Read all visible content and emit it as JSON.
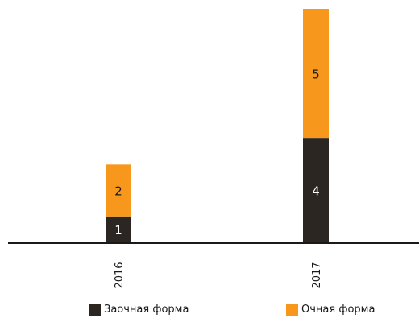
{
  "chart_data": {
    "type": "bar",
    "stacked": true,
    "categories": [
      "2016",
      "2017"
    ],
    "series": [
      {
        "name": "Заочная форма",
        "values": [
          1,
          4
        ],
        "color": "#2b2622",
        "label_color": "#ffffff"
      },
      {
        "name": "Очная форма",
        "values": [
          2,
          5
        ],
        "color": "#f7981d",
        "label_color": "#1a1a1a"
      }
    ],
    "ylim": [
      0,
      9
    ],
    "grid": false,
    "legend_position": "bottom"
  }
}
